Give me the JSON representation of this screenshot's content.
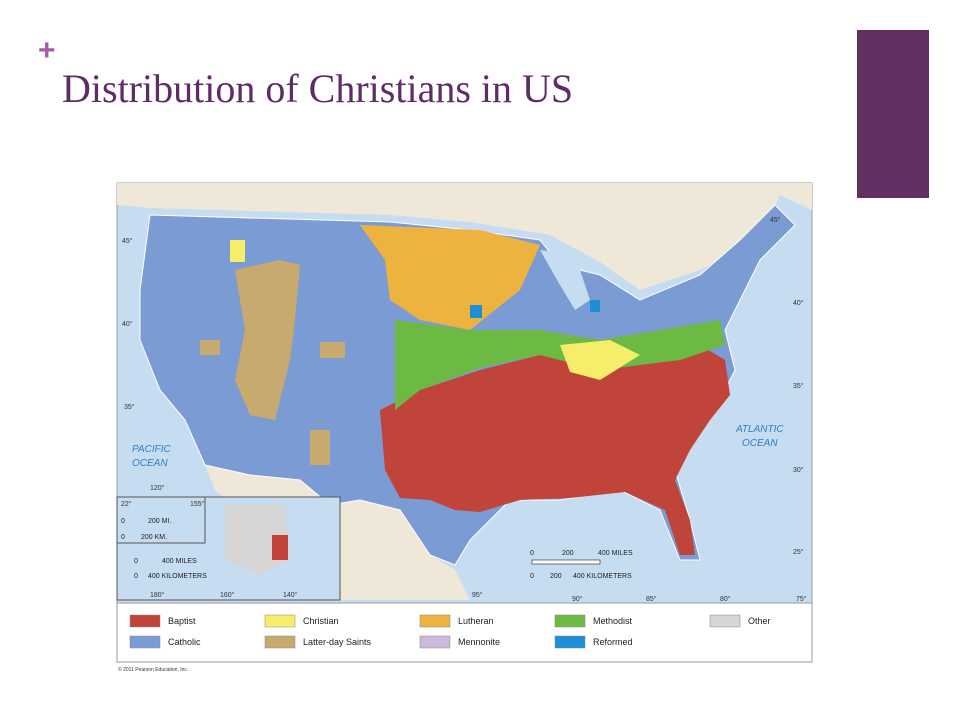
{
  "header": {
    "symbol": "+",
    "title": "Distribution of Christians in US"
  },
  "map": {
    "oceans": [
      "PACIFIC",
      "OCEAN",
      "ATLANTIC",
      "OCEAN"
    ],
    "degrees": [
      "45°",
      "40°",
      "35°",
      "30°",
      "25°",
      "120°",
      "95°",
      "90°",
      "85°",
      "80°",
      "75°",
      "22°",
      "155°",
      "180°",
      "160°",
      "140°",
      "40°",
      "35°",
      "45°"
    ],
    "scale": {
      "miles": [
        "0",
        "200",
        "400 MILES"
      ],
      "kilometers": [
        "0",
        "200",
        "400 KILOMETERS"
      ]
    },
    "hawaii_scale": {
      "miles": [
        "0",
        "200 MI."
      ],
      "kilometers": [
        "0",
        "200 KM."
      ]
    },
    "alaska_scale": {
      "miles": [
        "0",
        "400 MILES"
      ],
      "kilometers": [
        "0",
        "400 KILOMETERS"
      ]
    },
    "legend": [
      {
        "label": "Baptist",
        "color": "#c0443a"
      },
      {
        "label": "Catholic",
        "color": "#7b9bd5"
      },
      {
        "label": "Christian",
        "color": "#f6ee6a"
      },
      {
        "label": "Latter-day Saints",
        "color": "#c9aa6e"
      },
      {
        "label": "Lutheran",
        "color": "#eeb33e"
      },
      {
        "label": "Mennonite",
        "color": "#cdb9dc"
      },
      {
        "label": "Methodist",
        "color": "#6cb944"
      },
      {
        "label": "Reformed",
        "color": "#1e8fd6"
      },
      {
        "label": "Other",
        "color": "#d6d6d6"
      }
    ],
    "credit": "© 2011 Pearson Education, Inc."
  }
}
